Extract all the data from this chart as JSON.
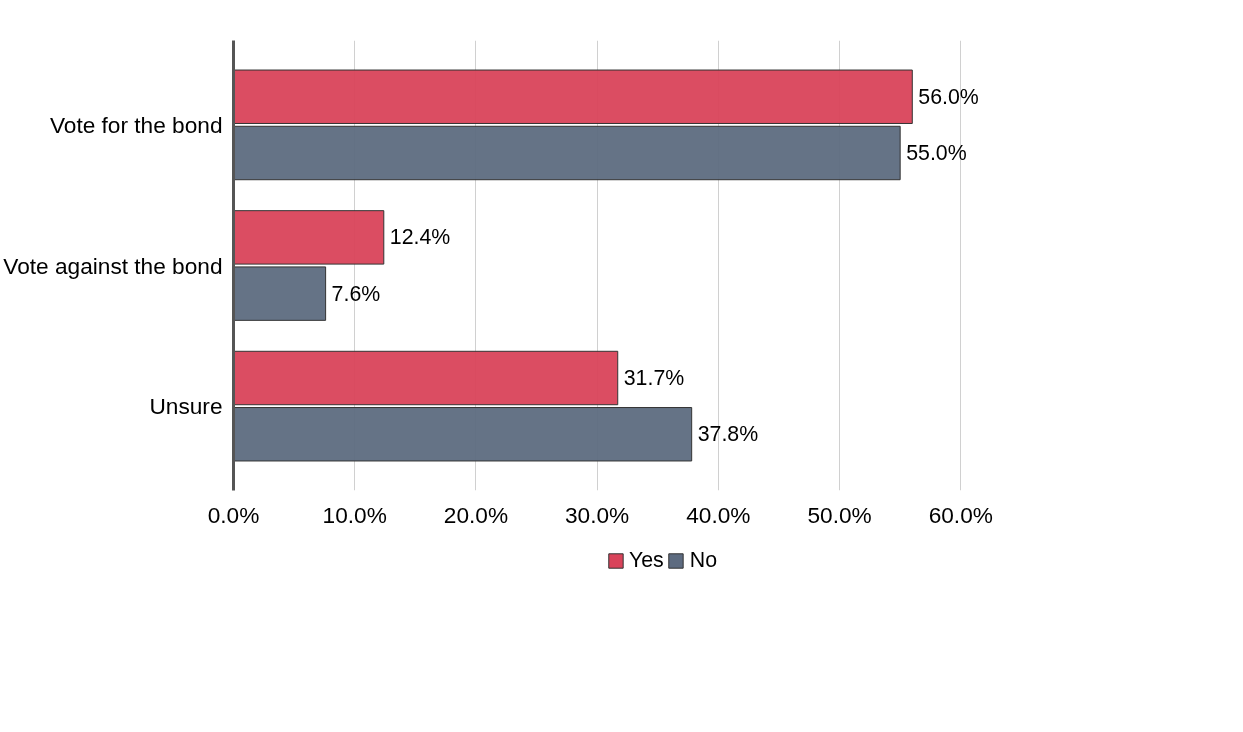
{
  "chart_data": {
    "type": "bar",
    "orientation": "horizontal",
    "categories": [
      "Vote for the bond",
      "Vote against the bond",
      "Unsure"
    ],
    "series": [
      {
        "name": "Yes",
        "color": "#d9435a",
        "values": [
          56.0,
          12.4,
          31.7
        ],
        "value_labels": [
          "56.0%",
          "12.4%",
          "31.7%"
        ]
      },
      {
        "name": "No",
        "color": "#5d6b80",
        "values": [
          55.0,
          7.6,
          37.8
        ],
        "value_labels": [
          "55.0%",
          "7.6%",
          "37.8%"
        ]
      }
    ],
    "xlim": [
      0,
      60
    ],
    "xticks": [
      {
        "value": 0,
        "label": "0.0%"
      },
      {
        "value": 10,
        "label": "10.0%"
      },
      {
        "value": 20,
        "label": "20.0%"
      },
      {
        "value": 30,
        "label": "30.0%"
      },
      {
        "value": 40,
        "label": "40.0%"
      },
      {
        "value": 50,
        "label": "50.0%"
      },
      {
        "value": 60,
        "label": "60.0%"
      }
    ],
    "grid": "x",
    "legend": "bottom"
  }
}
